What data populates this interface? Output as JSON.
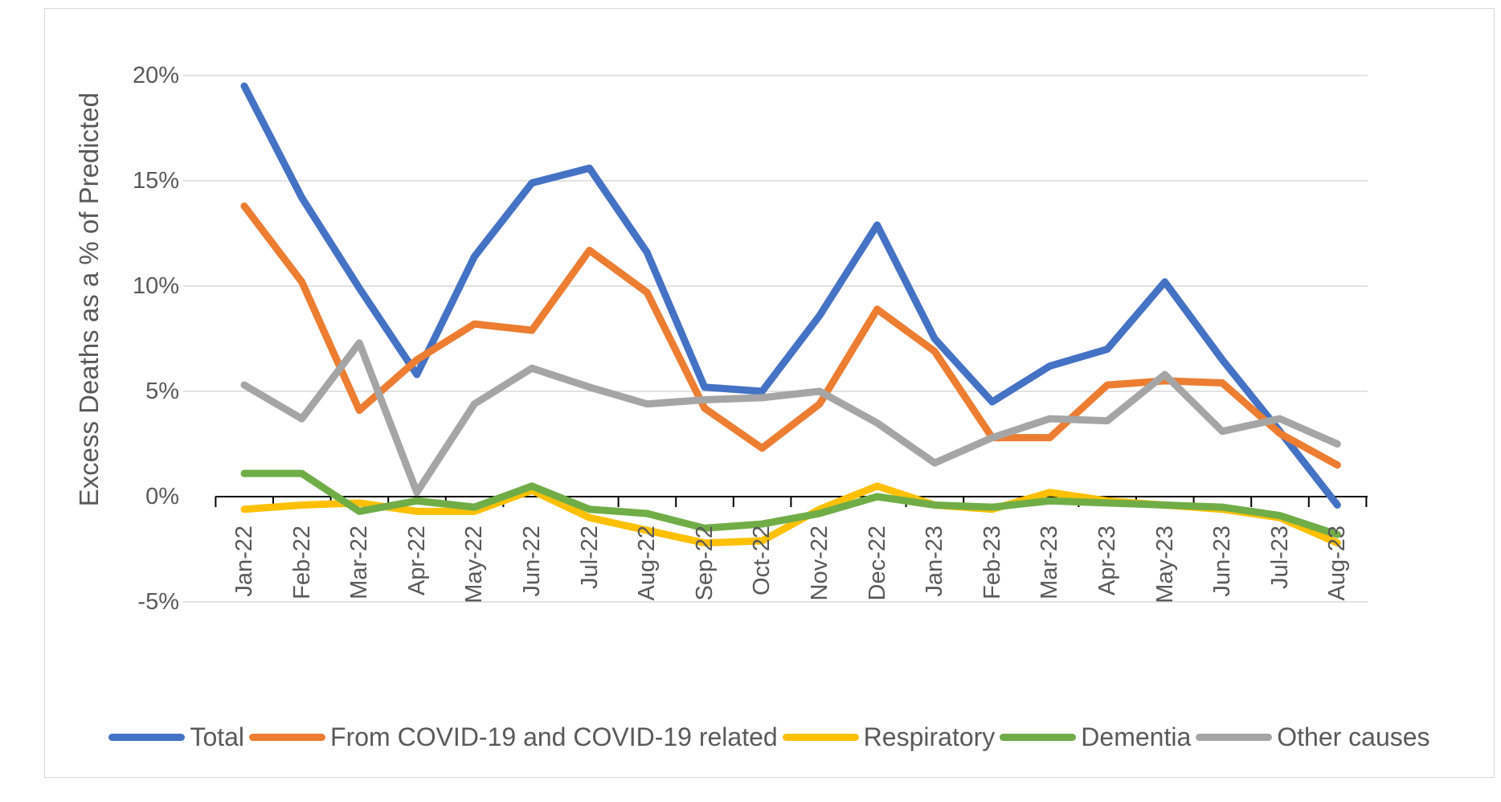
{
  "y_axis": {
    "title": "Excess Deaths as a % of Predicted",
    "tick_labels": [
      "20%",
      "15%",
      "10%",
      "5%",
      "0%",
      "-5%"
    ],
    "tick_values": [
      20,
      15,
      10,
      5,
      0,
      -5
    ]
  },
  "chart_data": {
    "type": "line",
    "title": "",
    "xlabel": "",
    "ylabel": "Excess Deaths as a % of Predicted",
    "ylim": [
      -5,
      20
    ],
    "grid": true,
    "legend_position": "bottom",
    "categories": [
      "Jan-22",
      "Feb-22",
      "Mar-22",
      "Apr-22",
      "May-22",
      "Jun-22",
      "Jul-22",
      "Aug-22",
      "Sep-22",
      "Oct-22",
      "Nov-22",
      "Dec-22",
      "Jan-23",
      "Feb-23",
      "Mar-23",
      "Apr-23",
      "May-23",
      "Jun-23",
      "Jul-23",
      "Aug-23"
    ],
    "series": [
      {
        "name": "Total",
        "color": "#4472C4",
        "values": [
          19.5,
          14.2,
          9.9,
          5.8,
          11.4,
          14.9,
          15.6,
          11.6,
          5.2,
          5.0,
          8.6,
          12.9,
          7.5,
          4.5,
          6.2,
          7.0,
          10.2,
          6.5,
          3.1,
          -0.4
        ]
      },
      {
        "name": "From COVID-19 and COVID-19 related",
        "color": "#ED7D31",
        "values": [
          13.8,
          10.2,
          4.1,
          6.5,
          8.2,
          7.9,
          11.7,
          9.7,
          4.2,
          2.3,
          4.4,
          8.9,
          6.9,
          2.8,
          2.8,
          5.3,
          5.5,
          5.4,
          3.0,
          1.5
        ]
      },
      {
        "name": "Respiratory",
        "color": "#FFC000",
        "values": [
          -0.6,
          -0.4,
          -0.3,
          -0.7,
          -0.7,
          0.3,
          -1.0,
          -1.6,
          -2.2,
          -2.1,
          -0.6,
          0.5,
          -0.4,
          -0.6,
          0.2,
          -0.2,
          -0.4,
          -0.6,
          -1.0,
          -2.2
        ]
      },
      {
        "name": "Dementia",
        "color": "#70AD47",
        "values": [
          1.1,
          1.1,
          -0.7,
          -0.2,
          -0.5,
          0.5,
          -0.6,
          -0.8,
          -1.5,
          -1.3,
          -0.8,
          0.0,
          -0.4,
          -0.5,
          -0.2,
          -0.3,
          -0.4,
          -0.5,
          -0.9,
          -1.8
        ]
      },
      {
        "name": "Other causes",
        "color": "#A5A5A5",
        "values": [
          5.3,
          3.7,
          7.3,
          0.2,
          4.4,
          6.1,
          5.2,
          4.4,
          4.6,
          4.7,
          5.0,
          3.5,
          1.6,
          2.8,
          3.7,
          3.6,
          5.8,
          3.1,
          3.7,
          2.5
        ]
      }
    ],
    "colors": {
      "gridline": "#d9d9d9",
      "axis": "#000000",
      "text": "#595959"
    }
  }
}
